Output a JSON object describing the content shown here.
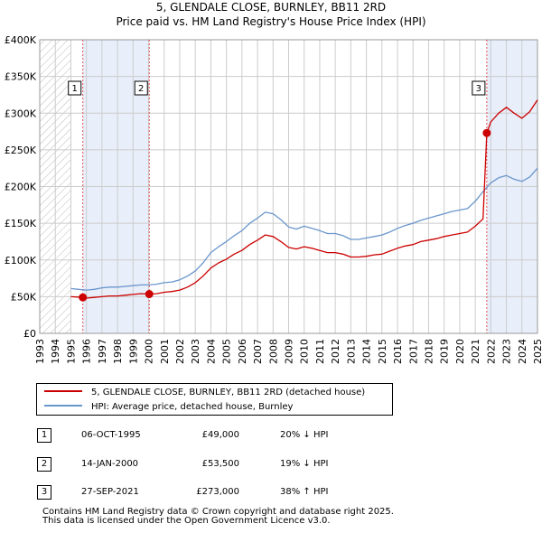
{
  "title": {
    "line1": "5, GLENDALE CLOSE, BURNLEY, BB11 2RD",
    "line2": "Price paid vs. HM Land Registry's House Price Index (HPI)"
  },
  "colors": {
    "property": "#cc0000",
    "hpi": "#6a96cc",
    "shade": "#e8eefa",
    "grid": "#cccccc",
    "marker_line": "#e05050"
  },
  "legend": {
    "property_label": "5, GLENDALE CLOSE, BURNLEY, BB11 2RD (detached house)",
    "hpi_label": "HPI: Average price, detached house, Burnley"
  },
  "transactions": [
    {
      "num": "1",
      "date": "06-OCT-1995",
      "price": "£49,000",
      "hpi_change": "20% ↓ HPI"
    },
    {
      "num": "2",
      "date": "14-JAN-2000",
      "price": "£53,500",
      "hpi_change": "19% ↓ HPI"
    },
    {
      "num": "3",
      "date": "27-SEP-2021",
      "price": "£273,000",
      "hpi_change": "38% ↑ HPI"
    }
  ],
  "footer": {
    "line1": "Contains HM Land Registry data © Crown copyright and database right 2025.",
    "line2": "This data is licensed under the Open Government Licence v3.0."
  },
  "chart_data": {
    "type": "line",
    "title": "Price paid vs. HM Land Registry's House Price Index (HPI)",
    "xlim": [
      1993,
      2025
    ],
    "ylim": [
      0,
      400000
    ],
    "x_ticks": [
      1993,
      1994,
      1995,
      1996,
      1997,
      1998,
      1999,
      2000,
      2001,
      2002,
      2003,
      2004,
      2005,
      2006,
      2007,
      2008,
      2009,
      2010,
      2011,
      2012,
      2013,
      2014,
      2015,
      2016,
      2017,
      2018,
      2019,
      2020,
      2021,
      2022,
      2023,
      2024,
      2025
    ],
    "y_ticks": [
      0,
      50000,
      100000,
      150000,
      200000,
      250000,
      300000,
      350000,
      400000
    ],
    "y_tick_labels": [
      "£0",
      "£50K",
      "£100K",
      "£150K",
      "£200K",
      "£250K",
      "£300K",
      "£350K",
      "£400K"
    ],
    "grid": true,
    "hatched_ranges": [
      [
        1993,
        1995.0
      ]
    ],
    "shaded_ranges": [
      [
        1995.77,
        2000.04
      ],
      [
        2021.74,
        2025
      ]
    ],
    "sale_markers": [
      {
        "label": "1",
        "x": 1995.77,
        "y": 49000
      },
      {
        "label": "2",
        "x": 2000.04,
        "y": 53500
      },
      {
        "label": "3",
        "x": 2021.74,
        "y": 273000
      }
    ],
    "series": [
      {
        "name": "HPI: Average price, detached house, Burnley",
        "color": "#6a96cc",
        "x": [
          1995.0,
          1995.5,
          1996.0,
          1996.5,
          1997.0,
          1997.5,
          1998.0,
          1998.5,
          1999.0,
          1999.5,
          2000.0,
          2000.5,
          2001.0,
          2001.5,
          2002.0,
          2002.5,
          2003.0,
          2003.5,
          2004.0,
          2004.5,
          2005.0,
          2005.5,
          2006.0,
          2006.5,
          2007.0,
          2007.5,
          2008.0,
          2008.5,
          2009.0,
          2009.5,
          2010.0,
          2010.5,
          2011.0,
          2011.5,
          2012.0,
          2012.5,
          2013.0,
          2013.5,
          2014.0,
          2014.5,
          2015.0,
          2015.5,
          2016.0,
          2016.5,
          2017.0,
          2017.5,
          2018.0,
          2018.5,
          2019.0,
          2019.5,
          2020.0,
          2020.5,
          2021.0,
          2021.5,
          2022.0,
          2022.5,
          2023.0,
          2023.5,
          2024.0,
          2024.5,
          2025.0
        ],
        "values": [
          61000,
          60000,
          59000,
          60000,
          62000,
          63000,
          63000,
          64000,
          65000,
          66000,
          66000,
          67000,
          69000,
          70000,
          73000,
          78000,
          85000,
          96000,
          110000,
          118000,
          125000,
          133000,
          140000,
          150000,
          157000,
          165000,
          163000,
          155000,
          145000,
          142000,
          146000,
          143000,
          140000,
          136000,
          136000,
          133000,
          128000,
          128000,
          130000,
          132000,
          134000,
          138000,
          143000,
          147000,
          150000,
          154000,
          157000,
          160000,
          163000,
          166000,
          168000,
          170000,
          180000,
          193000,
          205000,
          212000,
          215000,
          210000,
          207000,
          213000,
          225000
        ]
      },
      {
        "name": "5, GLENDALE CLOSE, BURNLEY, BB11 2RD (detached house)",
        "color": "#cc0000",
        "x": [
          1995.0,
          1995.77,
          1996.0,
          1996.5,
          1997.0,
          1997.5,
          1998.0,
          1998.5,
          1999.0,
          1999.5,
          2000.04,
          2000.5,
          2001.0,
          2001.5,
          2002.0,
          2002.5,
          2003.0,
          2003.5,
          2004.0,
          2004.5,
          2005.0,
          2005.5,
          2006.0,
          2006.5,
          2007.0,
          2007.5,
          2008.0,
          2008.5,
          2009.0,
          2009.5,
          2010.0,
          2010.5,
          2011.0,
          2011.5,
          2012.0,
          2012.5,
          2013.0,
          2013.5,
          2014.0,
          2014.5,
          2015.0,
          2015.5,
          2016.0,
          2016.5,
          2017.0,
          2017.5,
          2018.0,
          2018.5,
          2019.0,
          2019.5,
          2020.0,
          2020.5,
          2021.0,
          2021.5,
          2021.74,
          2022.0,
          2022.5,
          2023.0,
          2023.5,
          2024.0,
          2024.5,
          2025.0
        ],
        "values": [
          50000,
          49000,
          48000,
          49000,
          50000,
          51000,
          51000,
          52000,
          53000,
          54000,
          53500,
          54000,
          56000,
          57000,
          59000,
          63000,
          69000,
          78000,
          89000,
          96000,
          101000,
          108000,
          113000,
          121000,
          127000,
          134000,
          132000,
          125000,
          117000,
          115000,
          118000,
          116000,
          113000,
          110000,
          110000,
          108000,
          104000,
          104000,
          105000,
          107000,
          108000,
          112000,
          116000,
          119000,
          121000,
          125000,
          127000,
          129000,
          132000,
          134000,
          136000,
          138000,
          146000,
          156000,
          273000,
          288000,
          300000,
          308000,
          300000,
          293000,
          302000,
          318000
        ]
      }
    ]
  }
}
